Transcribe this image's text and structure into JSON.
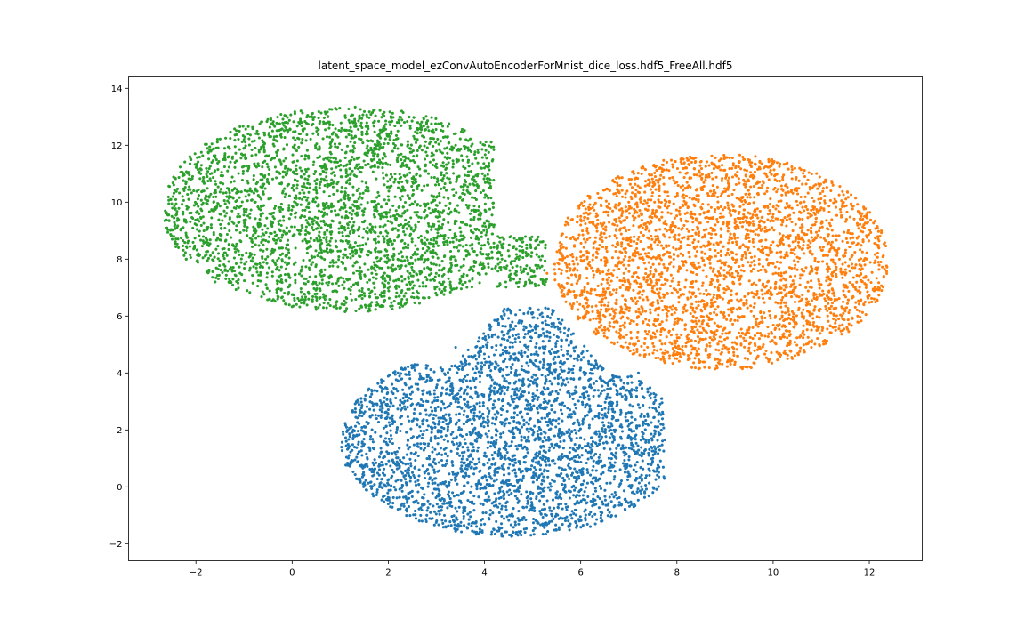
{
  "chart_data": {
    "type": "scatter",
    "title": "latent_space_model_ezConvAutoEncoderForMnist_dice_loss.hdf5_FreeAll.hdf5",
    "xlabel": "",
    "ylabel": "",
    "xlim": [
      -3.4,
      13.1
    ],
    "ylim": [
      -2.6,
      14.4
    ],
    "x_ticks": [
      -2,
      0,
      2,
      4,
      6,
      8,
      10,
      12
    ],
    "y_ticks": [
      -2,
      0,
      2,
      4,
      6,
      8,
      10,
      12,
      14
    ],
    "grid": false,
    "legend": "none",
    "series": [
      {
        "color": "#1f77b4",
        "cluster_center": [
          4.8,
          1.6
        ],
        "extent_x": [
          1.0,
          7.7
        ],
        "extent_y": [
          -1.8,
          6.3
        ],
        "points": [
          [
            1.5,
            1.5
          ],
          [
            1.8,
            2.5
          ],
          [
            2.2,
            4.0
          ],
          [
            2.5,
            0.5
          ],
          [
            2.8,
            -1.0
          ],
          [
            3.0,
            3.5
          ],
          [
            3.2,
            1.8
          ],
          [
            3.5,
            -0.5
          ],
          [
            3.8,
            2.8
          ],
          [
            4.0,
            4.5
          ],
          [
            4.2,
            0.2
          ],
          [
            4.5,
            1.0
          ],
          [
            4.6,
            -1.6
          ],
          [
            4.8,
            3.2
          ],
          [
            5.0,
            2.0
          ],
          [
            5.0,
            5.5
          ],
          [
            5.2,
            -0.8
          ],
          [
            5.5,
            1.5
          ],
          [
            5.8,
            3.8
          ],
          [
            6.0,
            0.5
          ],
          [
            6.2,
            -1.4
          ],
          [
            6.5,
            2.5
          ],
          [
            6.8,
            0.0
          ],
          [
            7.0,
            1.8
          ],
          [
            7.2,
            4.0
          ],
          [
            7.4,
            0.8
          ],
          [
            7.5,
            -0.2
          ],
          [
            4.9,
            6.1
          ],
          [
            1.2,
            0.8
          ],
          [
            2.0,
            -0.6
          ],
          [
            3.4,
            4.9
          ],
          [
            6.6,
            -0.9
          ]
        ]
      },
      {
        "color": "#ff7f0e",
        "cluster_center": [
          9.1,
          7.9
        ],
        "extent_x": [
          5.2,
          12.4
        ],
        "extent_y": [
          4.1,
          11.7
        ],
        "points": [
          [
            5.3,
            7.5
          ],
          [
            5.6,
            8.2
          ],
          [
            6.0,
            9.5
          ],
          [
            6.2,
            6.8
          ],
          [
            6.6,
            8.8
          ],
          [
            7.0,
            7.2
          ],
          [
            7.0,
            10.0
          ],
          [
            7.3,
            5.8
          ],
          [
            7.6,
            8.5
          ],
          [
            8.0,
            4.5
          ],
          [
            8.2,
            11.2
          ],
          [
            8.4,
            6.5
          ],
          [
            8.8,
            9.2
          ],
          [
            9.0,
            7.8
          ],
          [
            9.2,
            4.3
          ],
          [
            9.4,
            11.5
          ],
          [
            9.6,
            6.0
          ],
          [
            10.0,
            8.6
          ],
          [
            10.2,
            10.8
          ],
          [
            10.4,
            4.5
          ],
          [
            10.8,
            7.0
          ],
          [
            11.0,
            9.8
          ],
          [
            11.3,
            5.5
          ],
          [
            11.6,
            8.0
          ],
          [
            11.9,
            9.5
          ],
          [
            12.1,
            6.6
          ],
          [
            12.3,
            7.4
          ],
          [
            6.8,
            5.4
          ],
          [
            7.8,
            9.8
          ],
          [
            8.6,
            5.2
          ],
          [
            10.6,
            6.1
          ],
          [
            11.2,
            10.4
          ]
        ]
      },
      {
        "color": "#2ca02c",
        "cluster_center": [
          1.5,
          9.6
        ],
        "extent_x": [
          -2.6,
          5.5
        ],
        "extent_y": [
          6.1,
          13.4
        ],
        "points": [
          [
            -2.5,
            9.5
          ],
          [
            -2.2,
            8.0
          ],
          [
            -1.9,
            11.0
          ],
          [
            -1.6,
            7.2
          ],
          [
            -1.2,
            9.8
          ],
          [
            -1.0,
            12.2
          ],
          [
            -0.6,
            8.5
          ],
          [
            -0.3,
            6.6
          ],
          [
            0.0,
            10.5
          ],
          [
            0.2,
            12.8
          ],
          [
            0.5,
            7.8
          ],
          [
            0.8,
            9.2
          ],
          [
            0.9,
            13.3
          ],
          [
            1.2,
            11.4
          ],
          [
            1.5,
            6.8
          ],
          [
            1.8,
            8.6
          ],
          [
            2.0,
            10.2
          ],
          [
            2.2,
            12.5
          ],
          [
            2.5,
            7.2
          ],
          [
            2.8,
            9.5
          ],
          [
            3.0,
            11.8
          ],
          [
            3.3,
            8.0
          ],
          [
            3.6,
            10.6
          ],
          [
            3.9,
            7.8
          ],
          [
            4.2,
            9.2
          ],
          [
            4.6,
            8.4
          ],
          [
            5.0,
            7.4
          ],
          [
            5.2,
            8.1
          ],
          [
            -0.8,
            10.8
          ],
          [
            1.0,
            6.3
          ],
          [
            3.4,
            12.0
          ],
          [
            4.0,
            11.2
          ]
        ]
      }
    ]
  }
}
